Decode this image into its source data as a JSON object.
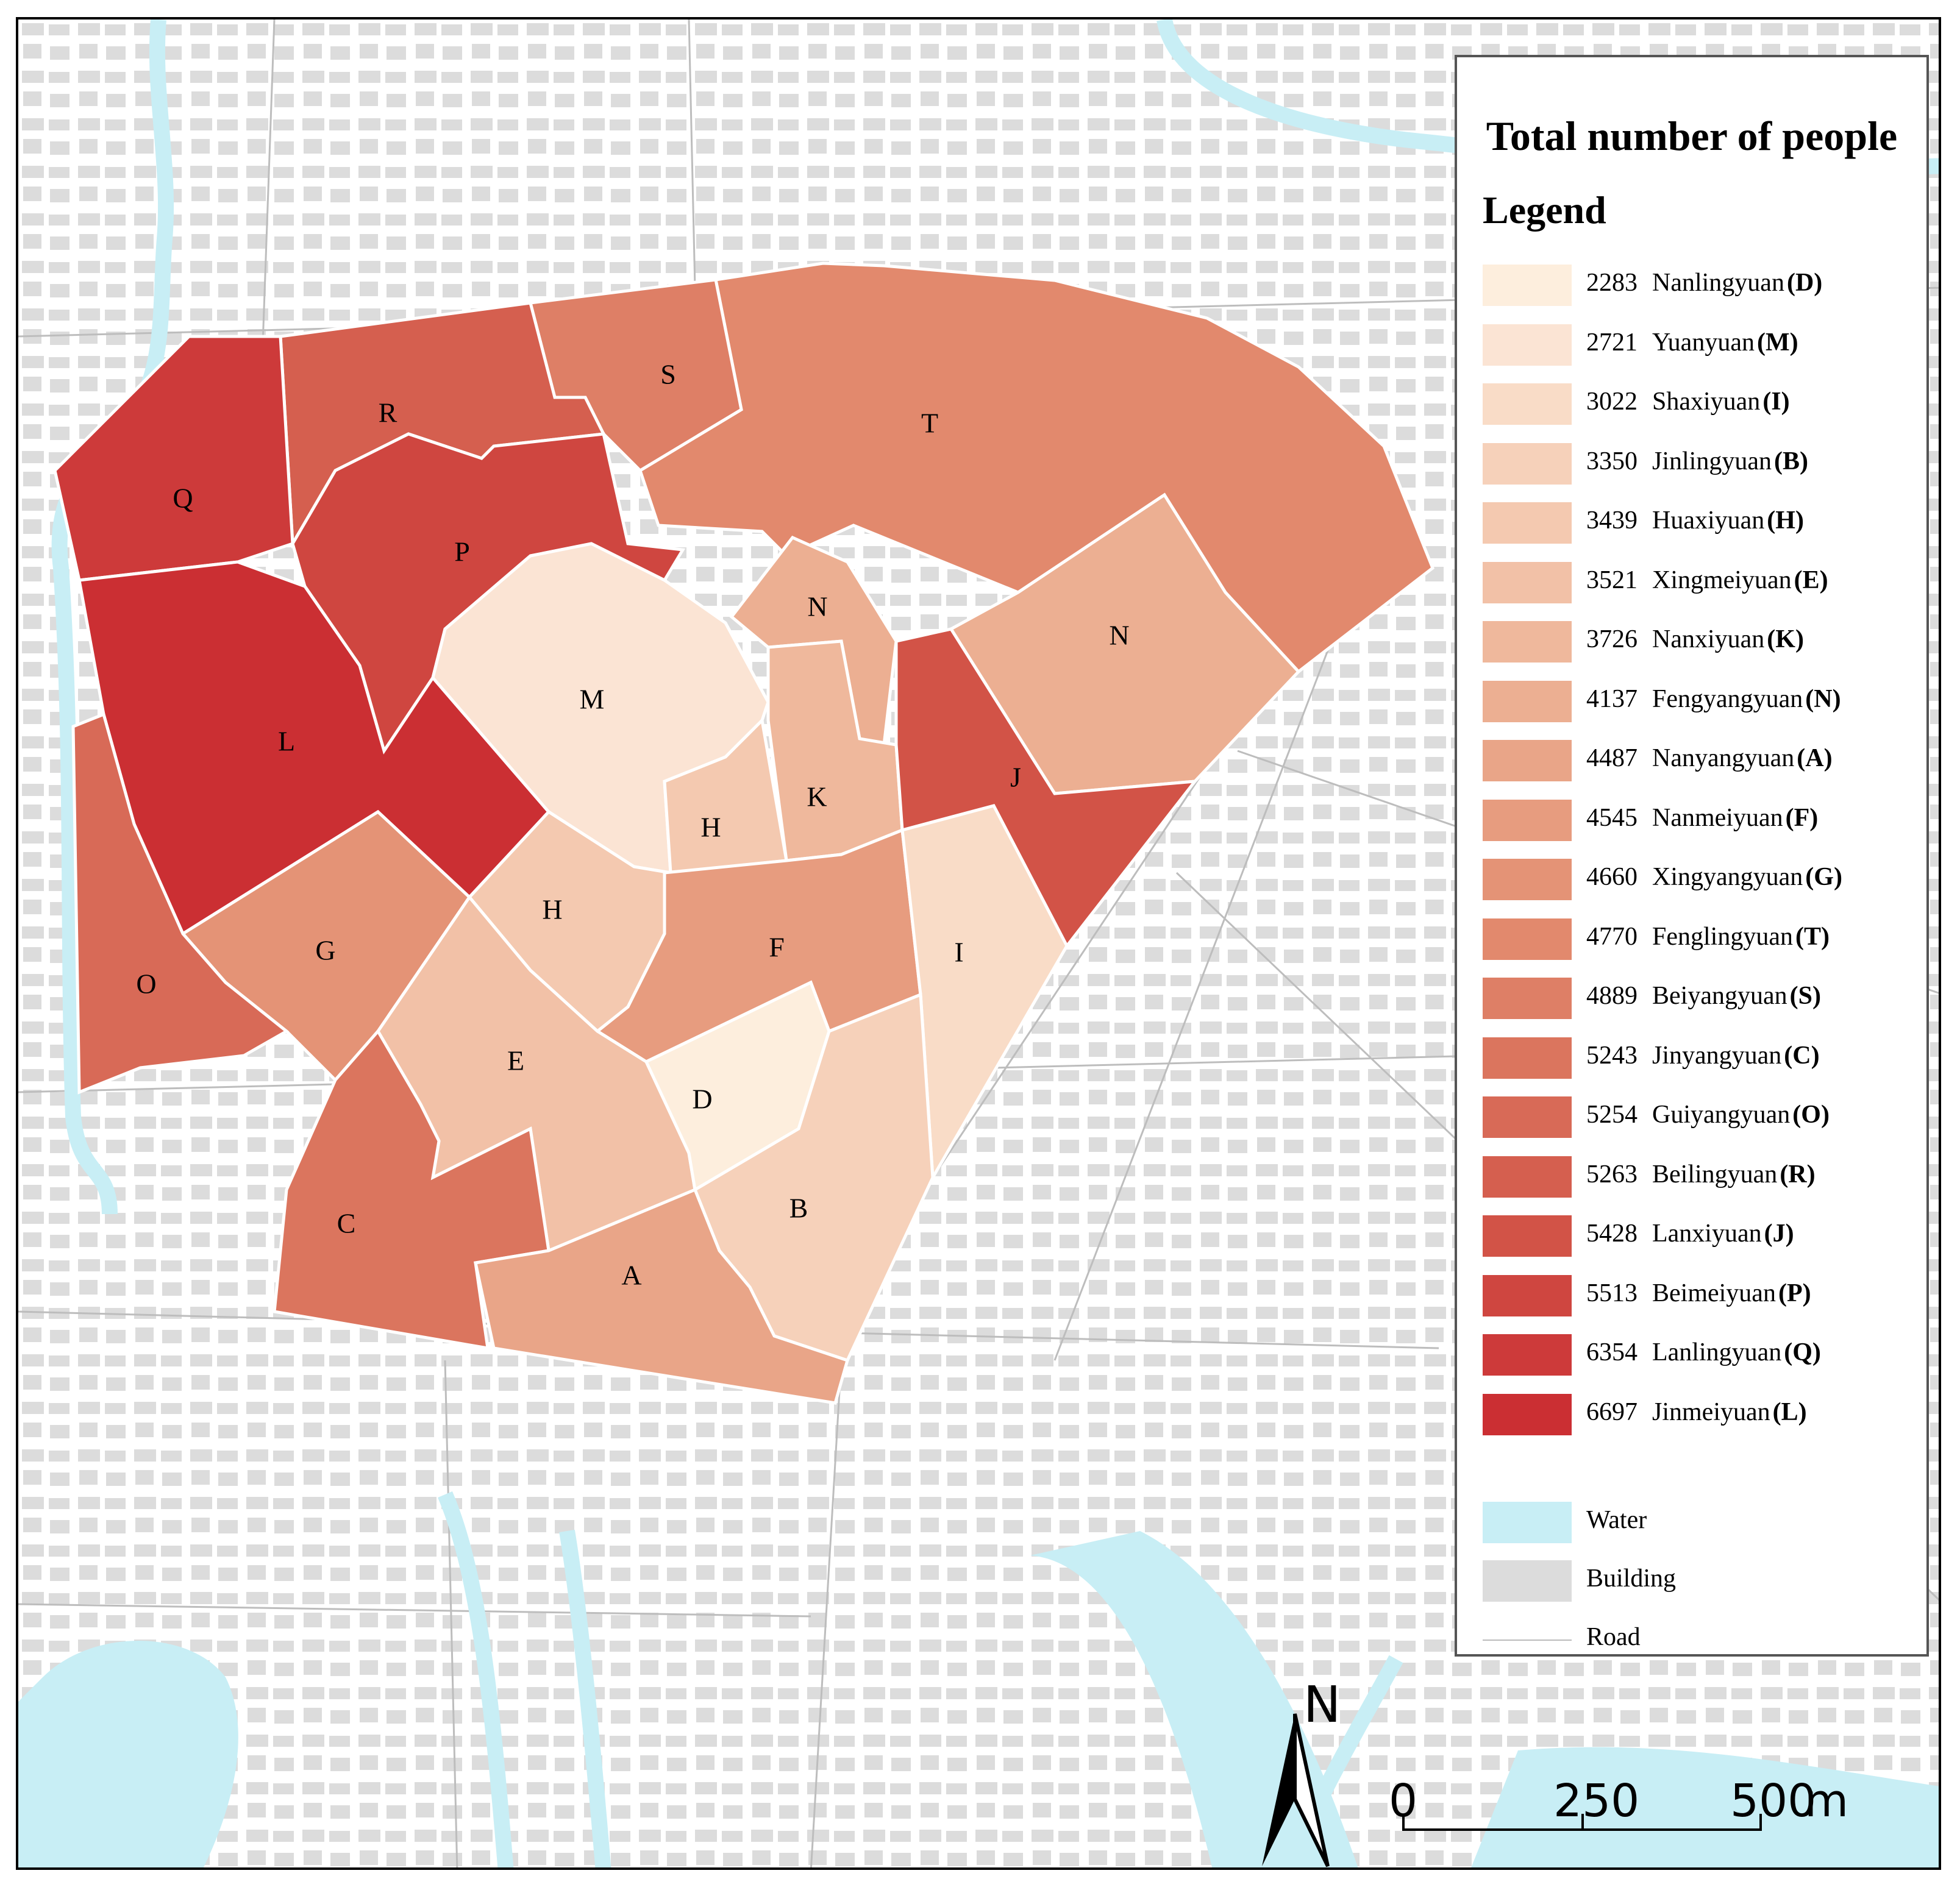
{
  "legend": {
    "title": "Total number of people",
    "subtitle": "Legend",
    "entries": [
      {
        "value": "2283",
        "name": "Nanlingyuan",
        "code": "(D)",
        "color": "#fdeedd"
      },
      {
        "value": "2721",
        "name": "Yuanyuan",
        "code": "(M)",
        "color": "#fbe4d4"
      },
      {
        "value": "3022",
        "name": "Shaxiyuan",
        "code": "(I)",
        "color": "#f9dcc7"
      },
      {
        "value": "3350",
        "name": "Jinlingyuan",
        "code": "(B)",
        "color": "#f6d1ba"
      },
      {
        "value": "3439",
        "name": "Huaxiyuan",
        "code": "(H)",
        "color": "#f4c9b0"
      },
      {
        "value": "3521",
        "name": "Xingmeiyuan",
        "code": "(E)",
        "color": "#f2c1a7"
      },
      {
        "value": "3726",
        "name": "Nanxiyuan",
        "code": "(K)",
        "color": "#efb89c"
      },
      {
        "value": "4137",
        "name": "Fengyangyuan",
        "code": "(N)",
        "color": "#ecaf92"
      },
      {
        "value": "4487",
        "name": "Nanyangyuan",
        "code": "(A)",
        "color": "#e9a588"
      },
      {
        "value": "4545",
        "name": "Nanmeiyuan",
        "code": "(F)",
        "color": "#e79c7f"
      },
      {
        "value": "4660",
        "name": "Xingyangyuan",
        "code": "(G)",
        "color": "#e49376"
      },
      {
        "value": "4770",
        "name": "Fenglingyuan",
        "code": "(T)",
        "color": "#e2896d"
      },
      {
        "value": "4889",
        "name": "Beiyangyuan",
        "code": "(S)",
        "color": "#de7f66"
      },
      {
        "value": "5243",
        "name": "Jinyangyuan",
        "code": "(C)",
        "color": "#db755e"
      },
      {
        "value": "5254",
        "name": "Guiyangyuan",
        "code": "(O)",
        "color": "#d86a57"
      },
      {
        "value": "5263",
        "name": "Beilingyuan",
        "code": "(R)",
        "color": "#d55f4f"
      },
      {
        "value": "5428",
        "name": "Lanxiyuan",
        "code": "(J)",
        "color": "#d25347"
      },
      {
        "value": "5513",
        "name": "Beimeiyuan",
        "code": "(P)",
        "color": "#cf4640"
      },
      {
        "value": "6354",
        "name": "Lanlingyuan",
        "code": "(Q)",
        "color": "#cd3a3a"
      },
      {
        "value": "6697",
        "name": "Jinmeiyuan",
        "code": "(L)",
        "color": "#cb2f33"
      }
    ],
    "water": {
      "label": "Water",
      "color": "#c8eef5"
    },
    "building": {
      "label": "Building",
      "color": "#dcdcdc"
    },
    "road": {
      "label": "Road"
    }
  },
  "zone_labels": {
    "Q": "Q",
    "R": "R",
    "S": "S",
    "T": "T",
    "P": "P",
    "L": "L",
    "M": "M",
    "N": "N",
    "K": "K",
    "H": "H",
    "J": "J",
    "G": "G",
    "O": "O",
    "F": "F",
    "I": "I",
    "E": "E",
    "D": "D",
    "C": "C",
    "B": "B",
    "A": "A"
  },
  "north_arrow": {
    "label": "N"
  },
  "scale_bar": {
    "labels": [
      "0",
      "250",
      "500"
    ],
    "unit": "m"
  }
}
